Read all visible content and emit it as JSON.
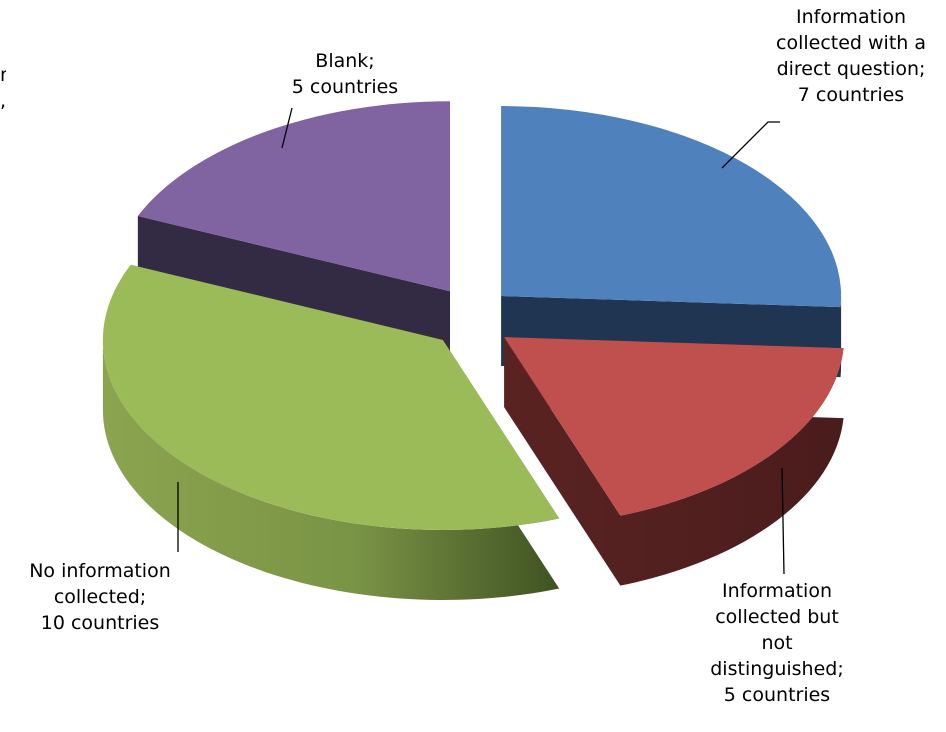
{
  "chart_data": {
    "type": "pie",
    "title": "",
    "categories": [
      "Information collected with a direct question",
      "Information collected but not distinguished",
      "No information collected",
      "Blank"
    ],
    "values": [
      7,
      5,
      10,
      5
    ],
    "unit": "countries",
    "colors": [
      "#4f81bd",
      "#c0504d",
      "#9bbb59",
      "#8064a2"
    ],
    "side_colors": [
      "#1f3552",
      "#4f1f1f",
      "#6e8a3e",
      "#332a44"
    ],
    "legend": "none",
    "style": "3d-exploded",
    "labels": [
      {
        "lines": [
          "Information",
          "collected with a",
          "direct question;",
          "7 countries"
        ]
      },
      {
        "lines": [
          "Information",
          "collected but",
          "not",
          "distinguished;",
          "5 countries"
        ]
      },
      {
        "lines": [
          "No information",
          "collected;",
          "10 countries"
        ]
      },
      {
        "lines": [
          "Blank;",
          "5 countries"
        ]
      }
    ]
  }
}
